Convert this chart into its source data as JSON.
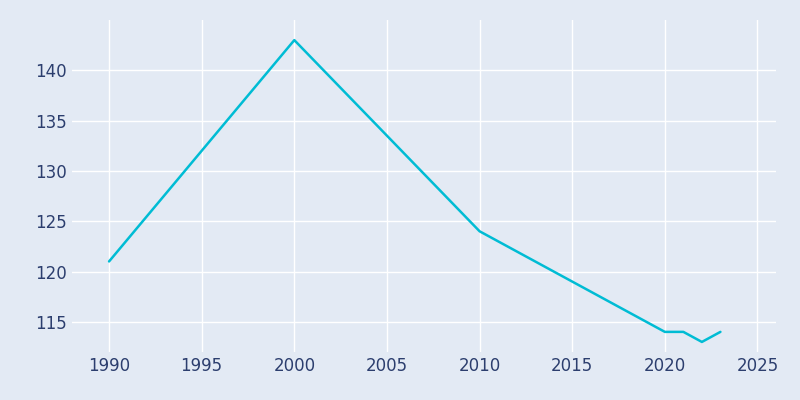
{
  "years": [
    1990,
    2000,
    2010,
    2020,
    2021,
    2022,
    2023
  ],
  "population": [
    121,
    143,
    124,
    114,
    114,
    113,
    114
  ],
  "line_color": "#00bcd4",
  "bg_color": "#e3eaf4",
  "grid_color": "#ffffff",
  "xlim": [
    1988,
    2026
  ],
  "ylim": [
    112,
    145
  ],
  "xticks": [
    1990,
    1995,
    2000,
    2005,
    2010,
    2015,
    2020,
    2025
  ],
  "yticks": [
    115,
    120,
    125,
    130,
    135,
    140
  ],
  "tick_label_color": "#2c3e6e",
  "linewidth": 1.8,
  "tick_fontsize": 12
}
